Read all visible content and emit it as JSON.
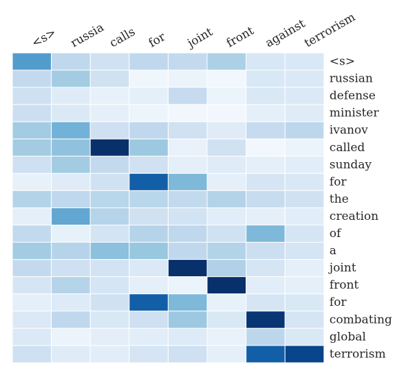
{
  "chart_data": {
    "type": "heatmap",
    "x_labels": [
      "<s>",
      "russia",
      "calls",
      "for",
      "joint",
      "front",
      "against",
      "terrorism"
    ],
    "y_labels": [
      "<s>",
      "russian",
      "defense",
      "minister",
      "ivanov",
      "called",
      "sunday",
      "for",
      "the",
      "creation",
      "of",
      "a",
      "joint",
      "front",
      "for",
      "combating",
      "global",
      "terrorism"
    ],
    "colormap": "Blues",
    "values": [
      [
        0.58,
        0.27,
        0.2,
        0.27,
        0.26,
        0.33,
        0.16,
        0.15
      ],
      [
        0.26,
        0.36,
        0.2,
        0.04,
        0.06,
        0.03,
        0.15,
        0.14
      ],
      [
        0.21,
        0.12,
        0.08,
        0.09,
        0.25,
        0.06,
        0.15,
        0.14
      ],
      [
        0.22,
        0.14,
        0.09,
        0.05,
        0.03,
        0.03,
        0.09,
        0.12
      ],
      [
        0.36,
        0.48,
        0.21,
        0.27,
        0.2,
        0.12,
        0.25,
        0.28
      ],
      [
        0.36,
        0.41,
        1.0,
        0.38,
        0.07,
        0.2,
        0.03,
        0.06
      ],
      [
        0.21,
        0.36,
        0.26,
        0.2,
        0.09,
        0.12,
        0.09,
        0.11
      ],
      [
        0.08,
        0.12,
        0.2,
        0.82,
        0.45,
        0.09,
        0.17,
        0.15
      ],
      [
        0.31,
        0.27,
        0.29,
        0.29,
        0.26,
        0.31,
        0.24,
        0.2
      ],
      [
        0.09,
        0.53,
        0.3,
        0.2,
        0.19,
        0.11,
        0.09,
        0.11
      ],
      [
        0.26,
        0.08,
        0.18,
        0.3,
        0.27,
        0.2,
        0.45,
        0.17
      ],
      [
        0.36,
        0.3,
        0.42,
        0.39,
        0.27,
        0.31,
        0.22,
        0.17
      ],
      [
        0.26,
        0.21,
        0.19,
        0.14,
        1.0,
        0.32,
        0.17,
        0.09
      ],
      [
        0.17,
        0.3,
        0.17,
        0.09,
        0.06,
        1.0,
        0.11,
        0.09
      ],
      [
        0.09,
        0.13,
        0.2,
        0.82,
        0.45,
        0.08,
        0.17,
        0.15
      ],
      [
        0.14,
        0.27,
        0.15,
        0.21,
        0.38,
        0.15,
        0.98,
        0.17
      ],
      [
        0.14,
        0.06,
        0.1,
        0.11,
        0.13,
        0.07,
        0.28,
        0.15
      ],
      [
        0.21,
        0.12,
        0.11,
        0.17,
        0.21,
        0.09,
        0.82,
        0.92
      ]
    ]
  }
}
